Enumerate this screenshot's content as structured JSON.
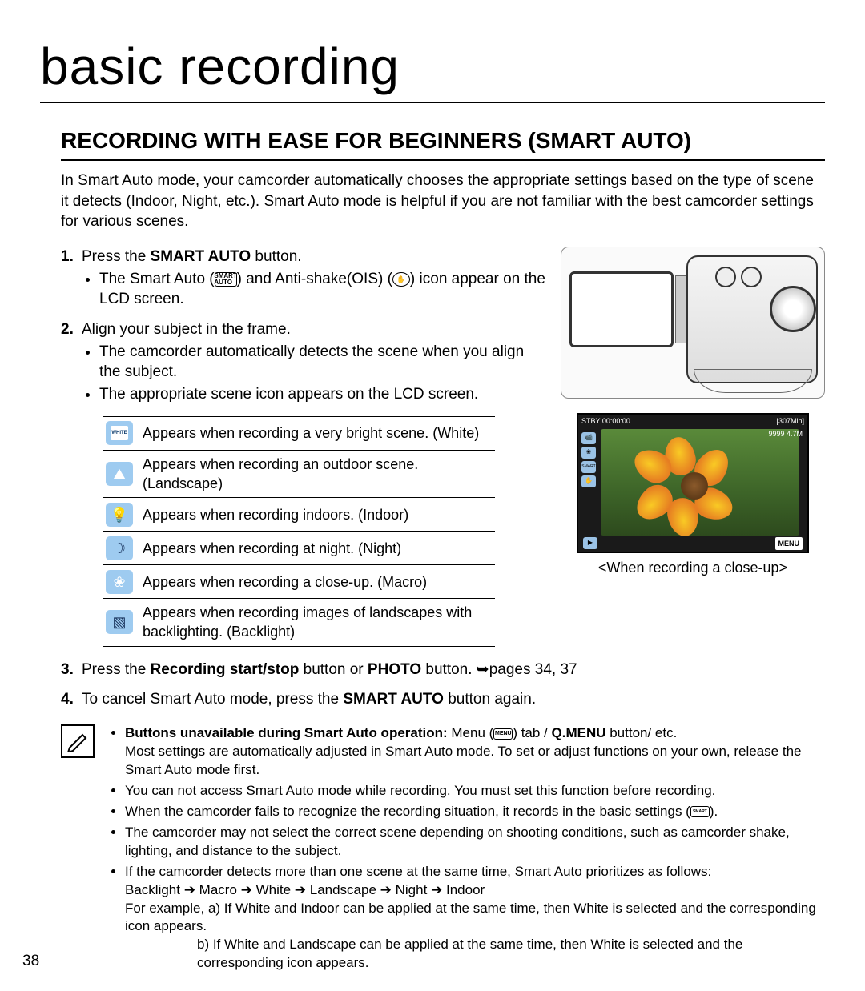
{
  "page_number": "38",
  "chapter_title": "basic recording",
  "section_title": "RECORDING WITH EASE FOR BEGINNERS (SMART AUTO)",
  "intro": "In Smart Auto mode, your camcorder automatically chooses the appropriate settings based on the type of scene it detects (Indoor, Night, etc.). Smart Auto mode is helpful if you are not familiar with the best camcorder settings for various scenes.",
  "steps": {
    "s1_lead": "Press the ",
    "s1_bold": "SMART AUTO",
    "s1_tail": " button.",
    "s1_b1a": "The Smart Auto (",
    "s1_b1b": ") and Anti-shake(OIS) (",
    "s1_b1c": ") icon appear on the LCD screen.",
    "s2": "Align your subject in the frame.",
    "s2_b1": "The camcorder automatically detects the scene when you align the subject.",
    "s2_b2": "The appropriate scene icon appears on the LCD screen.",
    "s3_lead": "Press the ",
    "s3_b1": "Recording start/stop",
    "s3_mid": " button or ",
    "s3_b2": "PHOTO",
    "s3_tail": " button. ➥pages 34, 37",
    "s4_lead": "To cancel Smart Auto mode, press the ",
    "s4_bold": "SMART AUTO",
    "s4_tail": " button again."
  },
  "scene_icons": [
    {
      "bg": "#9ecbf0",
      "fg": "#ffffff",
      "glyph": "◻",
      "label_color": "#0b3a6b",
      "text_bg": "#ffffff",
      "desc": "Appears when recording a very bright scene. (White)",
      "special": "white"
    },
    {
      "bg": "#9ecbf0",
      "fg": "#ffffff",
      "glyph": "⛰",
      "desc": "Appears when recording an outdoor scene. (Landscape)"
    },
    {
      "bg": "#9ecbf0",
      "fg": "#ffffff",
      "glyph": "💡",
      "desc": "Appears when recording indoors. (Indoor)"
    },
    {
      "bg": "#9ecbf0",
      "fg": "#1a355e",
      "glyph": "☽",
      "desc": "Appears when recording at night. (Night)"
    },
    {
      "bg": "#9ecbf0",
      "fg": "#ffffff",
      "glyph": "❀",
      "desc": "Appears when recording a close-up. (Macro)"
    },
    {
      "bg": "#9ecbf0",
      "fg": "#1a355e",
      "glyph": "▧",
      "desc": "Appears when recording images of landscapes with backlighting. (Backlight)"
    }
  ],
  "lcd": {
    "caption": "<When recording a close-up>",
    "top_left": "STBY  00:00:00",
    "top_right": "[307Min]",
    "sub_right": "9999  4.7M",
    "menu_label": "MENU",
    "icon_bg": "#9bc3e6"
  },
  "notes": {
    "n1_bold": "Buttons unavailable during Smart Auto operation:",
    "n1_rest": " Menu (",
    "n1_rest2": ") tab / ",
    "n1_bold2": "Q.MENU",
    "n1_rest3": " button/ etc.",
    "n1_line2": "Most settings are automatically adjusted in Smart Auto mode. To set or adjust functions on your own, release the Smart Auto mode first.",
    "n2": "You can not access Smart Auto mode while recording. You must set this function before recording.",
    "n3a": "When the camcorder fails to recognize the recording situation, it records in the basic settings (",
    "n3b": ").",
    "n4": "The camcorder may not select the correct scene depending on shooting conditions, such as camcorder shake, lighting, and distance to the subject.",
    "n5": "If the camcorder detects more than one scene at the same time, Smart Auto prioritizes as follows:",
    "n5_chain": "Backlight ➔ Macro ➔ White ➔ Landscape ➔ Night ➔ Indoor",
    "n5_ex_lead": "For example, ",
    "n5_exa": "a) If White and Indoor can be applied at the same time, then White is selected and the corresponding icon appears.",
    "n5_exb": "b) If White and Landscape can be applied at the same time, then White is selected and the corresponding icon appears."
  },
  "colors": {
    "icon_tile": "#9ecbf0",
    "text": "#000000",
    "flower_center": "#6b3410",
    "flower_petal": "#f39c12",
    "leaf_bg": "#3d6428"
  }
}
